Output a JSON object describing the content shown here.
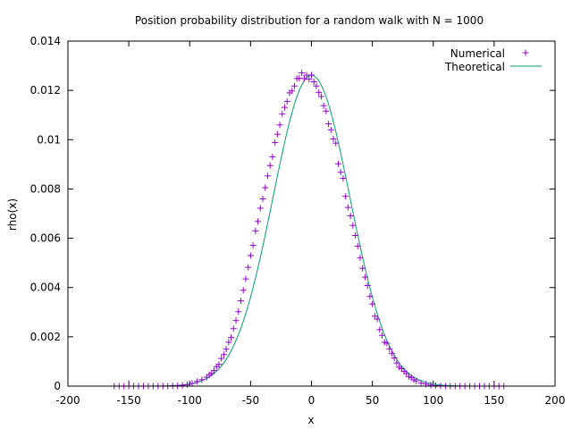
{
  "chart_data": {
    "type": "scatter",
    "title": "Position probability distribution for a random walk with N = 1000",
    "xlabel": "x",
    "ylabel": "rho(x)",
    "xlim": [
      -200,
      200
    ],
    "ylim": [
      0,
      0.014
    ],
    "x_ticks": [
      -200,
      -150,
      -100,
      -50,
      0,
      50,
      100,
      150,
      200
    ],
    "x_tick_labels": [
      "-200",
      "-150",
      "-100",
      "-50",
      "0",
      "50",
      "100",
      "150",
      "200"
    ],
    "y_ticks": [
      0,
      0.002,
      0.004,
      0.006,
      0.008,
      0.01,
      0.012,
      0.014
    ],
    "y_tick_labels": [
      "0",
      "0.002",
      "0.004",
      "0.006",
      "0.008",
      "0.01",
      "0.012",
      "0.014"
    ],
    "grid": false,
    "legend_position": "top-right",
    "series": [
      {
        "name": "Numerical",
        "style": "points",
        "marker": "plus",
        "color": "#9400d3",
        "x": [
          -162,
          -158,
          -154,
          -150,
          -146,
          -142,
          -138,
          -134,
          -130,
          -126,
          -122,
          -118,
          -114,
          -110,
          -106,
          -102,
          -98,
          -94,
          -90,
          -86,
          -84,
          -82,
          -80,
          -78,
          -76,
          -74,
          -72,
          -70,
          -68,
          -66,
          -64,
          -62,
          -60,
          -58,
          -56,
          -54,
          -52,
          -50,
          -48,
          -46,
          -44,
          -42,
          -40,
          -38,
          -36,
          -34,
          -32,
          -30,
          -28,
          -26,
          -24,
          -22,
          -20,
          -18,
          -16,
          -14,
          -12,
          -10,
          -8,
          -6,
          -4,
          -2,
          0,
          2,
          4,
          6,
          8,
          10,
          12,
          14,
          16,
          18,
          20,
          22,
          24,
          26,
          28,
          30,
          32,
          34,
          36,
          38,
          40,
          42,
          44,
          46,
          48,
          50,
          52,
          54,
          56,
          58,
          60,
          62,
          64,
          66,
          68,
          70,
          72,
          74,
          76,
          78,
          80,
          82,
          84,
          86,
          90,
          94,
          98,
          102,
          106,
          110,
          114,
          118,
          122,
          126,
          130,
          134,
          138,
          142,
          146,
          150,
          154,
          158
        ],
        "y": [
          0,
          0,
          0,
          0,
          0,
          0,
          0,
          0,
          0,
          0,
          0,
          0,
          1e-05,
          1e-05,
          3e-05,
          6e-05,
          0.00011,
          0.00019,
          0.00026,
          0.00036,
          0.00046,
          0.00052,
          0.00063,
          0.00079,
          0.00088,
          0.00112,
          0.00128,
          0.0015,
          0.00178,
          0.00197,
          0.00233,
          0.00266,
          0.00302,
          0.00346,
          0.00389,
          0.00435,
          0.00482,
          0.0053,
          0.00571,
          0.0063,
          0.00668,
          0.00722,
          0.0076,
          0.00805,
          0.00853,
          0.00895,
          0.0093,
          0.00988,
          0.01022,
          0.0106,
          0.01104,
          0.01131,
          0.01155,
          0.0119,
          0.01198,
          0.01218,
          0.01248,
          0.01249,
          0.01271,
          0.01248,
          0.01262,
          0.01245,
          0.01262,
          0.01235,
          0.01218,
          0.01192,
          0.01175,
          0.01138,
          0.01116,
          0.01064,
          0.0104,
          0.01003,
          0.00986,
          0.00902,
          0.00868,
          0.00843,
          0.0077,
          0.00725,
          0.00691,
          0.00652,
          0.00611,
          0.00568,
          0.00521,
          0.00478,
          0.00442,
          0.00408,
          0.00364,
          0.00333,
          0.00284,
          0.00272,
          0.00229,
          0.00206,
          0.00178,
          0.00174,
          0.00151,
          0.00133,
          0.00114,
          0.00094,
          0.00077,
          0.00071,
          0.0006,
          0.00051,
          0.00039,
          0.00034,
          0.00026,
          0.00021,
          0.00012,
          8e-05,
          4e-05,
          2e-05,
          1e-05,
          0,
          0,
          0,
          0,
          0,
          0,
          0,
          0,
          0,
          0,
          0,
          0,
          0
        ]
      },
      {
        "name": "Theoretical",
        "style": "line",
        "color": "#009e73",
        "function": "gaussian",
        "mean": 0,
        "variance": 1000,
        "x_range": [
          -160,
          160
        ]
      }
    ]
  }
}
